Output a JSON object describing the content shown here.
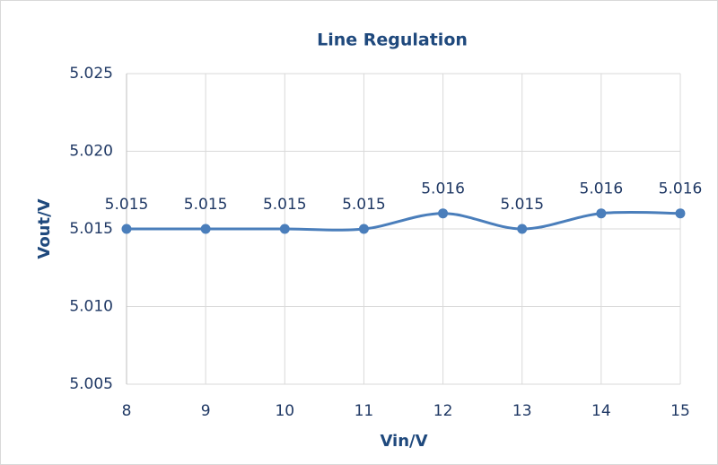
{
  "chart_data": {
    "type": "line",
    "title": "Line Regulation",
    "x_label": "Vin/V",
    "y_label": "Vout/V",
    "x": [
      8,
      9,
      10,
      11,
      12,
      13,
      14,
      15
    ],
    "series": [
      {
        "name": "Vout",
        "color": "#4a7ebb",
        "values": [
          5.015,
          5.015,
          5.015,
          5.015,
          5.016,
          5.015,
          5.016,
          5.016
        ]
      }
    ],
    "xlim": [
      8,
      15
    ],
    "xticks": [
      8,
      9,
      10,
      11,
      12,
      13,
      14,
      15
    ],
    "ylim": [
      5.005,
      5.025
    ],
    "yticks": [
      5.005,
      {
        "value": 5.01,
        "label": "5.010"
      },
      5.015,
      {
        "value": 5.02,
        "label": "5.020"
      },
      5.025
    ],
    "grid": true,
    "smooth": true
  }
}
